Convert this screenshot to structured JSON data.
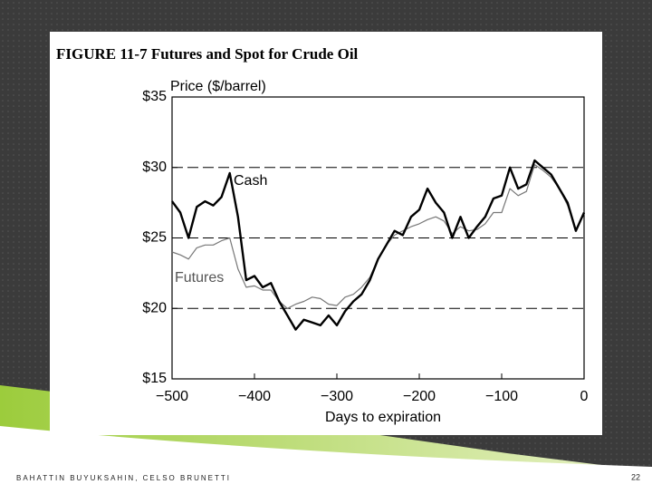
{
  "chart_data": {
    "type": "line",
    "title": "FIGURE 11-7 Futures and Spot for Crude Oil",
    "y_label": "Price ($/barrel)",
    "x_label": "Days to expiration",
    "x": [
      -500,
      -490,
      -480,
      -470,
      -460,
      -450,
      -440,
      -430,
      -420,
      -410,
      -400,
      -390,
      -380,
      -370,
      -360,
      -350,
      -340,
      -330,
      -320,
      -310,
      -300,
      -290,
      -280,
      -270,
      -260,
      -250,
      -240,
      -230,
      -220,
      -210,
      -200,
      -190,
      -180,
      -170,
      -160,
      -150,
      -140,
      -130,
      -120,
      -110,
      -100,
      -90,
      -80,
      -70,
      -60,
      -50,
      -40,
      -30,
      -20,
      -10,
      0
    ],
    "series": [
      {
        "name": "Cash",
        "color": "#000000",
        "values": [
          27.6,
          26.8,
          25.0,
          27.2,
          27.6,
          27.3,
          27.9,
          29.6,
          26.5,
          22.0,
          22.3,
          21.5,
          21.8,
          20.5,
          19.5,
          18.5,
          19.2,
          19.0,
          18.8,
          19.5,
          18.8,
          19.8,
          20.5,
          21.0,
          22.0,
          23.5,
          24.5,
          25.5,
          25.2,
          26.5,
          27.0,
          28.5,
          27.5,
          26.8,
          25.0,
          26.5,
          25.0,
          25.8,
          26.5,
          27.8,
          28.0,
          30.0,
          28.5,
          28.8,
          30.5,
          30.0,
          29.5,
          28.5,
          27.5,
          25.5,
          26.8
        ]
      },
      {
        "name": "Futures",
        "color": "#777777",
        "values": [
          24.0,
          23.8,
          23.5,
          24.3,
          24.5,
          24.5,
          24.8,
          25.0,
          22.8,
          21.5,
          21.6,
          21.3,
          21.3,
          20.5,
          20.0,
          20.3,
          20.5,
          20.8,
          20.7,
          20.3,
          20.2,
          20.8,
          21.0,
          21.5,
          22.2,
          23.5,
          24.5,
          25.2,
          25.5,
          25.8,
          26.0,
          26.3,
          26.5,
          26.2,
          25.3,
          25.8,
          25.5,
          25.6,
          26.0,
          26.8,
          26.8,
          28.5,
          28.0,
          28.3,
          30.2,
          29.8,
          29.3,
          28.5,
          27.3,
          25.6,
          26.7
        ]
      }
    ],
    "xlim": [
      -500,
      0
    ],
    "xticks": [
      {
        "value": -500,
        "label": "−500"
      },
      {
        "value": -400,
        "label": "−400"
      },
      {
        "value": -300,
        "label": "−300"
      },
      {
        "value": -200,
        "label": "−200"
      },
      {
        "value": -100,
        "label": "−100"
      },
      0
    ],
    "ylim": [
      15,
      35
    ],
    "yticks": [
      {
        "value": 15,
        "label": "$15"
      },
      {
        "value": 20,
        "label": "$20"
      },
      {
        "value": 25,
        "label": "$25"
      },
      {
        "value": 30,
        "label": "$30"
      },
      {
        "value": 35,
        "label": "$35"
      }
    ],
    "grid": true
  },
  "footer": {
    "authors": "BAHATTIN BUYUKSAHIN, CELSO BRUNETTI",
    "page": "22"
  }
}
